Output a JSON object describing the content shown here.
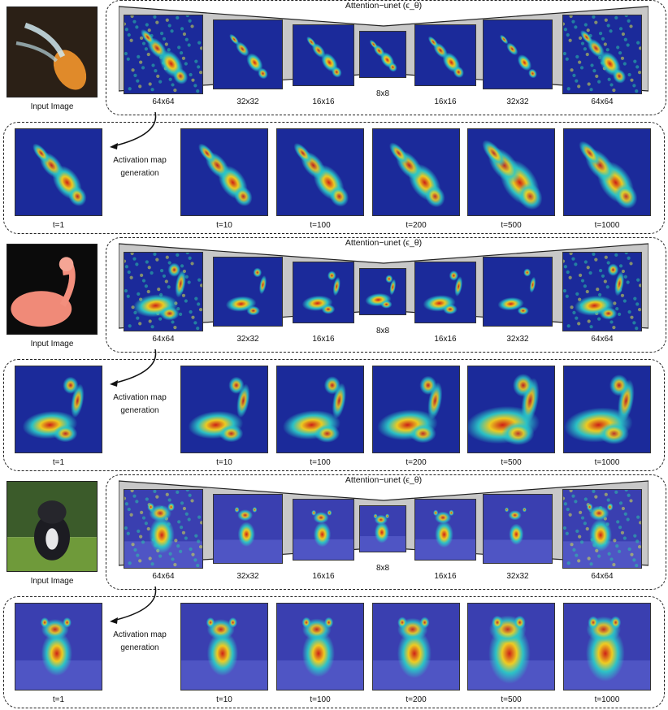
{
  "groups": [
    {
      "subject": "koi fish",
      "input_label": "Input Image",
      "unet_title": "Attention−unet (ϵ_θ)"
    },
    {
      "subject": "flamingo",
      "input_label": "Input Image",
      "unet_title": "Attention−unet (ϵ_θ)"
    },
    {
      "subject": "french bulldog",
      "input_label": "Input Image",
      "unet_title": "Attention−unet (ϵ_θ)"
    }
  ],
  "unet_resolutions": [
    "64x64",
    "32x32",
    "16x16",
    "8x8",
    "16x16",
    "32x32",
    "64x64"
  ],
  "timesteps": [
    "t=1",
    "t=10",
    "t=100",
    "t=200",
    "t=500",
    "t=1000"
  ],
  "activation_label": "Activation map generation",
  "unet_title": "Attention−unet (ϵ_θ)",
  "input_label": "Input Image",
  "colors": {
    "dashed_border": "#222222",
    "unet_fill": "#c8c8c8",
    "map_bg": "#1b2a9a",
    "map_hot": "#d62010",
    "map_warm": "#f7d21a",
    "map_mid": "#2bc7c7"
  }
}
